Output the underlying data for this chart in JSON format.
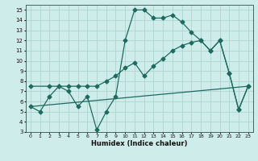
{
  "xlabel": "Humidex (Indice chaleur)",
  "bg_color": "#ceecea",
  "line_color": "#1e6b5e",
  "grid_color": "#aed5d0",
  "xlim": [
    -0.5,
    23.5
  ],
  "ylim": [
    3,
    15.5
  ],
  "yticks": [
    3,
    4,
    5,
    6,
    7,
    8,
    9,
    10,
    11,
    12,
    13,
    14,
    15
  ],
  "xticks": [
    0,
    1,
    2,
    3,
    4,
    5,
    6,
    7,
    8,
    9,
    10,
    11,
    12,
    13,
    14,
    15,
    16,
    17,
    18,
    19,
    20,
    21,
    22,
    23
  ],
  "line1_x": [
    0,
    1,
    2,
    3,
    4,
    5,
    6,
    7,
    8,
    9,
    10,
    11,
    12,
    13,
    14,
    15,
    16,
    17,
    18,
    19,
    20,
    21,
    22,
    23
  ],
  "line1_y": [
    5.5,
    5.0,
    6.5,
    7.5,
    7.0,
    5.5,
    6.5,
    3.2,
    5.0,
    6.5,
    12.0,
    15.0,
    15.0,
    14.2,
    14.2,
    14.5,
    13.8,
    12.8,
    12.0,
    11.0,
    12.0,
    8.8,
    5.2,
    7.5
  ],
  "line2_x": [
    0,
    2,
    3,
    4,
    5,
    6,
    7,
    8,
    9,
    10,
    11,
    12,
    13,
    14,
    15,
    16,
    17,
    18,
    19,
    20,
    21,
    22,
    23
  ],
  "line2_y": [
    7.5,
    7.5,
    7.5,
    7.5,
    7.5,
    7.5,
    7.5,
    8.0,
    8.5,
    9.3,
    9.8,
    8.5,
    9.5,
    10.2,
    11.0,
    11.5,
    11.8,
    12.0,
    11.0,
    12.0,
    8.8,
    5.2,
    7.5
  ],
  "line3_x": [
    0,
    23
  ],
  "line3_y": [
    5.5,
    7.5
  ]
}
